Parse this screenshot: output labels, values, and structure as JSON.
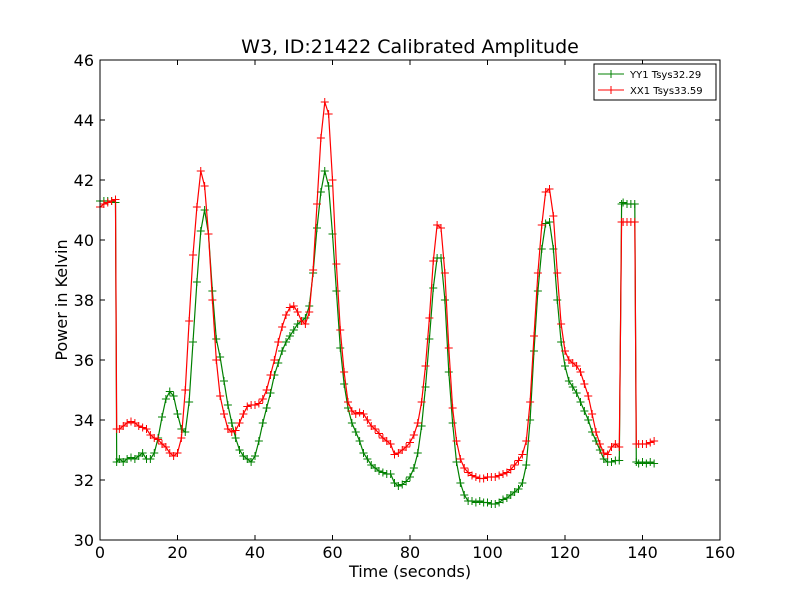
{
  "chart_data": {
    "type": "line",
    "title": "W3, ID:21422 Calibrated Amplitude",
    "xlabel": "Time (seconds)",
    "ylabel": "Power in Kelvin",
    "xlim": [
      0,
      160
    ],
    "ylim": [
      30,
      46
    ],
    "xticks": [
      0,
      20,
      40,
      60,
      80,
      100,
      120,
      140,
      160
    ],
    "yticks": [
      30,
      32,
      34,
      36,
      38,
      40,
      42,
      44,
      46
    ],
    "legend_position": "top-right",
    "grid": false,
    "marker": "+",
    "series": [
      {
        "name": "YY1 Tsys32.29",
        "color": "#008000",
        "points": [
          [
            0,
            41.3
          ],
          [
            1,
            41.3
          ],
          [
            2,
            41.3
          ],
          [
            3,
            41.3
          ],
          [
            4,
            41.25
          ],
          [
            4.3,
            32.6
          ],
          [
            5,
            32.7
          ],
          [
            6,
            32.6
          ],
          [
            7,
            32.7
          ],
          [
            8,
            32.75
          ],
          [
            9,
            32.7
          ],
          [
            10,
            32.8
          ],
          [
            11,
            32.9
          ],
          [
            12,
            32.7
          ],
          [
            13,
            32.7
          ],
          [
            14,
            32.9
          ],
          [
            15,
            33.4
          ],
          [
            16,
            34.1
          ],
          [
            17,
            34.7
          ],
          [
            18,
            34.95
          ],
          [
            19,
            34.8
          ],
          [
            20,
            34.2
          ],
          [
            21,
            33.7
          ],
          [
            22,
            33.6
          ],
          [
            23,
            34.6
          ],
          [
            24,
            36.6
          ],
          [
            25,
            38.6
          ],
          [
            26,
            40.3
          ],
          [
            27,
            41.0
          ],
          [
            28,
            40.2
          ],
          [
            29,
            38.3
          ],
          [
            30,
            36.7
          ],
          [
            31,
            36.1
          ],
          [
            32,
            35.3
          ],
          [
            33,
            34.5
          ],
          [
            34,
            33.9
          ],
          [
            35,
            33.4
          ],
          [
            36,
            33.0
          ],
          [
            37,
            32.8
          ],
          [
            38,
            32.7
          ],
          [
            39,
            32.6
          ],
          [
            40,
            32.8
          ],
          [
            41,
            33.3
          ],
          [
            42,
            33.9
          ],
          [
            43,
            34.4
          ],
          [
            44,
            34.9
          ],
          [
            45,
            35.5
          ],
          [
            46,
            35.9
          ],
          [
            47,
            36.3
          ],
          [
            48,
            36.6
          ],
          [
            49,
            36.8
          ],
          [
            50,
            37.0
          ],
          [
            51,
            37.2
          ],
          [
            52,
            37.3
          ],
          [
            53,
            37.4
          ],
          [
            54,
            37.8
          ],
          [
            55,
            38.9
          ],
          [
            56,
            40.4
          ],
          [
            57,
            41.6
          ],
          [
            58,
            42.3
          ],
          [
            59,
            41.8
          ],
          [
            60,
            40.2
          ],
          [
            61,
            38.3
          ],
          [
            62,
            36.4
          ],
          [
            63,
            35.2
          ],
          [
            64,
            34.4
          ],
          [
            65,
            33.9
          ],
          [
            66,
            33.6
          ],
          [
            67,
            33.3
          ],
          [
            68,
            32.9
          ],
          [
            69,
            32.7
          ],
          [
            70,
            32.5
          ],
          [
            71,
            32.4
          ],
          [
            72,
            32.3
          ],
          [
            73,
            32.25
          ],
          [
            74,
            32.2
          ],
          [
            75,
            32.2
          ],
          [
            76,
            31.9
          ],
          [
            77,
            31.8
          ],
          [
            78,
            31.85
          ],
          [
            79,
            31.95
          ],
          [
            80,
            32.1
          ],
          [
            81,
            32.4
          ],
          [
            82,
            32.9
          ],
          [
            83,
            33.8
          ],
          [
            84,
            35.1
          ],
          [
            85,
            36.7
          ],
          [
            86,
            38.4
          ],
          [
            87,
            39.4
          ],
          [
            88,
            39.4
          ],
          [
            89,
            38.0
          ],
          [
            90,
            35.6
          ],
          [
            91,
            33.9
          ],
          [
            92,
            32.6
          ],
          [
            93,
            31.9
          ],
          [
            94,
            31.5
          ],
          [
            95,
            31.3
          ],
          [
            96,
            31.3
          ],
          [
            97,
            31.25
          ],
          [
            98,
            31.3
          ],
          [
            99,
            31.25
          ],
          [
            100,
            31.25
          ],
          [
            101,
            31.2
          ],
          [
            102,
            31.2
          ],
          [
            103,
            31.25
          ],
          [
            104,
            31.35
          ],
          [
            105,
            31.4
          ],
          [
            106,
            31.5
          ],
          [
            107,
            31.6
          ],
          [
            108,
            31.7
          ],
          [
            109,
            31.9
          ],
          [
            110,
            32.5
          ],
          [
            111,
            34.0
          ],
          [
            112,
            36.3
          ],
          [
            113,
            38.3
          ],
          [
            114,
            39.7
          ],
          [
            115,
            40.55
          ],
          [
            116,
            40.6
          ],
          [
            117,
            39.7
          ],
          [
            118,
            38.0
          ],
          [
            119,
            36.6
          ],
          [
            120,
            35.8
          ],
          [
            121,
            35.3
          ],
          [
            122,
            35.1
          ],
          [
            123,
            34.9
          ],
          [
            124,
            34.6
          ],
          [
            125,
            34.3
          ],
          [
            126,
            34.0
          ],
          [
            127,
            33.6
          ],
          [
            128,
            33.3
          ],
          [
            129,
            33.0
          ],
          [
            130,
            32.7
          ],
          [
            131,
            32.6
          ],
          [
            132,
            32.6
          ],
          [
            133,
            32.65
          ],
          [
            134,
            32.65
          ],
          [
            134.6,
            41.2
          ],
          [
            135,
            41.25
          ],
          [
            136,
            41.2
          ],
          [
            137,
            41.2
          ],
          [
            138,
            41.2
          ],
          [
            138.4,
            32.6
          ],
          [
            139,
            32.55
          ],
          [
            140,
            32.6
          ],
          [
            141,
            32.55
          ],
          [
            142,
            32.6
          ],
          [
            143,
            32.55
          ]
        ]
      },
      {
        "name": "XX1 Tsys33.59",
        "color": "#ff0000",
        "points": [
          [
            0,
            41.1
          ],
          [
            1,
            41.2
          ],
          [
            2,
            41.25
          ],
          [
            3,
            41.3
          ],
          [
            4,
            41.35
          ],
          [
            4.3,
            33.7
          ],
          [
            5,
            33.7
          ],
          [
            6,
            33.8
          ],
          [
            7,
            33.9
          ],
          [
            8,
            33.95
          ],
          [
            9,
            33.9
          ],
          [
            10,
            33.8
          ],
          [
            11,
            33.75
          ],
          [
            12,
            33.7
          ],
          [
            13,
            33.5
          ],
          [
            14,
            33.4
          ],
          [
            15,
            33.35
          ],
          [
            16,
            33.2
          ],
          [
            17,
            33.1
          ],
          [
            18,
            32.9
          ],
          [
            19,
            32.8
          ],
          [
            20,
            32.9
          ],
          [
            21,
            33.4
          ],
          [
            22,
            35.0
          ],
          [
            23,
            37.3
          ],
          [
            24,
            39.5
          ],
          [
            25,
            41.1
          ],
          [
            26,
            42.3
          ],
          [
            27,
            41.8
          ],
          [
            28,
            40.2
          ],
          [
            29,
            38.0
          ],
          [
            30,
            36.0
          ],
          [
            31,
            34.8
          ],
          [
            32,
            34.2
          ],
          [
            33,
            33.7
          ],
          [
            34,
            33.6
          ],
          [
            35,
            33.65
          ],
          [
            36,
            33.9
          ],
          [
            37,
            34.2
          ],
          [
            38,
            34.45
          ],
          [
            39,
            34.5
          ],
          [
            40,
            34.5
          ],
          [
            41,
            34.55
          ],
          [
            42,
            34.7
          ],
          [
            43,
            35.0
          ],
          [
            44,
            35.5
          ],
          [
            45,
            36.0
          ],
          [
            46,
            36.6
          ],
          [
            47,
            37.1
          ],
          [
            48,
            37.5
          ],
          [
            49,
            37.75
          ],
          [
            50,
            37.8
          ],
          [
            51,
            37.6
          ],
          [
            52,
            37.3
          ],
          [
            53,
            37.2
          ],
          [
            54,
            37.6
          ],
          [
            55,
            39.0
          ],
          [
            56,
            41.2
          ],
          [
            57,
            43.4
          ],
          [
            58,
            44.6
          ],
          [
            59,
            44.2
          ],
          [
            60,
            42.0
          ],
          [
            61,
            39.2
          ],
          [
            62,
            37.0
          ],
          [
            63,
            35.6
          ],
          [
            64,
            34.6
          ],
          [
            65,
            34.3
          ],
          [
            66,
            34.2
          ],
          [
            67,
            34.25
          ],
          [
            68,
            34.2
          ],
          [
            69,
            34.0
          ],
          [
            70,
            33.8
          ],
          [
            71,
            33.7
          ],
          [
            72,
            33.55
          ],
          [
            73,
            33.4
          ],
          [
            74,
            33.3
          ],
          [
            75,
            33.2
          ],
          [
            76,
            32.85
          ],
          [
            77,
            32.9
          ],
          [
            78,
            33.0
          ],
          [
            79,
            33.1
          ],
          [
            80,
            33.25
          ],
          [
            81,
            33.5
          ],
          [
            82,
            33.9
          ],
          [
            83,
            34.6
          ],
          [
            84,
            35.8
          ],
          [
            85,
            37.4
          ],
          [
            86,
            39.3
          ],
          [
            87,
            40.5
          ],
          [
            88,
            40.4
          ],
          [
            89,
            38.9
          ],
          [
            90,
            36.4
          ],
          [
            91,
            34.4
          ],
          [
            92,
            33.3
          ],
          [
            93,
            32.7
          ],
          [
            94,
            32.4
          ],
          [
            95,
            32.25
          ],
          [
            96,
            32.15
          ],
          [
            97,
            32.1
          ],
          [
            98,
            32.05
          ],
          [
            99,
            32.05
          ],
          [
            100,
            32.1
          ],
          [
            101,
            32.1
          ],
          [
            102,
            32.1
          ],
          [
            103,
            32.15
          ],
          [
            104,
            32.2
          ],
          [
            105,
            32.25
          ],
          [
            106,
            32.35
          ],
          [
            107,
            32.5
          ],
          [
            108,
            32.65
          ],
          [
            109,
            32.85
          ],
          [
            110,
            33.3
          ],
          [
            111,
            34.6
          ],
          [
            112,
            36.8
          ],
          [
            113,
            38.9
          ],
          [
            114,
            40.5
          ],
          [
            115,
            41.6
          ],
          [
            116,
            41.7
          ],
          [
            117,
            40.8
          ],
          [
            118,
            38.9
          ],
          [
            119,
            37.2
          ],
          [
            120,
            36.3
          ],
          [
            121,
            36.0
          ],
          [
            122,
            35.9
          ],
          [
            123,
            35.8
          ],
          [
            124,
            35.6
          ],
          [
            125,
            35.2
          ],
          [
            126,
            34.8
          ],
          [
            127,
            34.2
          ],
          [
            128,
            33.6
          ],
          [
            129,
            33.2
          ],
          [
            130,
            32.9
          ],
          [
            131,
            32.85
          ],
          [
            132,
            33.1
          ],
          [
            133,
            33.2
          ],
          [
            134,
            33.1
          ],
          [
            134.6,
            40.6
          ],
          [
            135,
            40.6
          ],
          [
            136,
            40.6
          ],
          [
            137,
            40.6
          ],
          [
            138,
            40.6
          ],
          [
            138.4,
            33.2
          ],
          [
            139,
            33.2
          ],
          [
            140,
            33.2
          ],
          [
            141,
            33.2
          ],
          [
            142,
            33.25
          ],
          [
            143,
            33.3
          ]
        ]
      }
    ]
  }
}
